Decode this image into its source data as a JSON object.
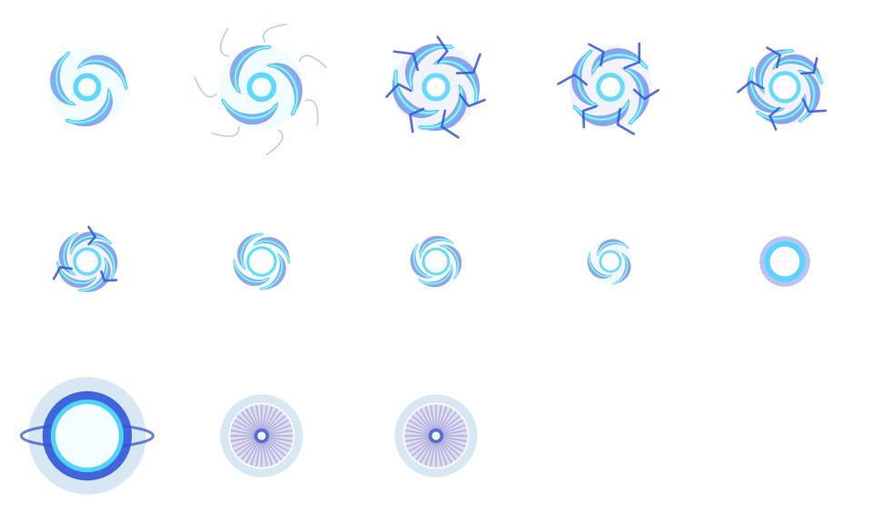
{
  "sprite_sheet": {
    "columns": 5,
    "rows": 3,
    "frame_count": 13,
    "palette": {
      "sky": "#4fd4ff",
      "royal": "#3a5fdc",
      "deep": "#2f55d8",
      "teal": "#3fb6c8",
      "glow": "#d9f7ff",
      "halo": "#b8d6ea",
      "ray": "#5a4fb8"
    },
    "frames": [
      {
        "type": "swirl",
        "scale": 0.95,
        "arms": 3,
        "core": 0.0,
        "bolts": 0,
        "wisps": 0,
        "color": "sky"
      },
      {
        "type": "swirl",
        "scale": 1.0,
        "arms": 3,
        "core": 0.0,
        "bolts": 0,
        "wisps": 7,
        "color": "sky"
      },
      {
        "type": "swirl",
        "scale": 1.05,
        "arms": 4,
        "core": 0.18,
        "bolts": 7,
        "wisps": 0,
        "color": "royal"
      },
      {
        "type": "swirl",
        "scale": 1.0,
        "arms": 4,
        "core": 0.2,
        "bolts": 6,
        "wisps": 0,
        "color": "royal"
      },
      {
        "type": "swirl",
        "scale": 0.9,
        "arms": 5,
        "core": 0.28,
        "bolts": 5,
        "wisps": 0,
        "color": "royal"
      },
      {
        "type": "swirl",
        "scale": 0.72,
        "arms": 5,
        "core": 0.32,
        "bolts": 3,
        "wisps": 0,
        "color": "royal"
      },
      {
        "type": "swirl",
        "scale": 0.66,
        "arms": 4,
        "core": 0.4,
        "bolts": 0,
        "wisps": 0,
        "color": "sky"
      },
      {
        "type": "swirl",
        "scale": 0.6,
        "arms": 4,
        "core": 0.4,
        "bolts": 0,
        "wisps": 0,
        "color": "teal"
      },
      {
        "type": "swirl",
        "scale": 0.54,
        "arms": 3,
        "core": 0.35,
        "bolts": 0,
        "wisps": 0,
        "color": "teal"
      },
      {
        "type": "ring",
        "scale": 0.55,
        "color": "deep"
      },
      {
        "type": "burst",
        "scale": 1.35,
        "color": "deep"
      },
      {
        "type": "rays",
        "scale": 0.95,
        "color": "ray"
      },
      {
        "type": "rays",
        "scale": 0.95,
        "color": "ray"
      }
    ]
  }
}
